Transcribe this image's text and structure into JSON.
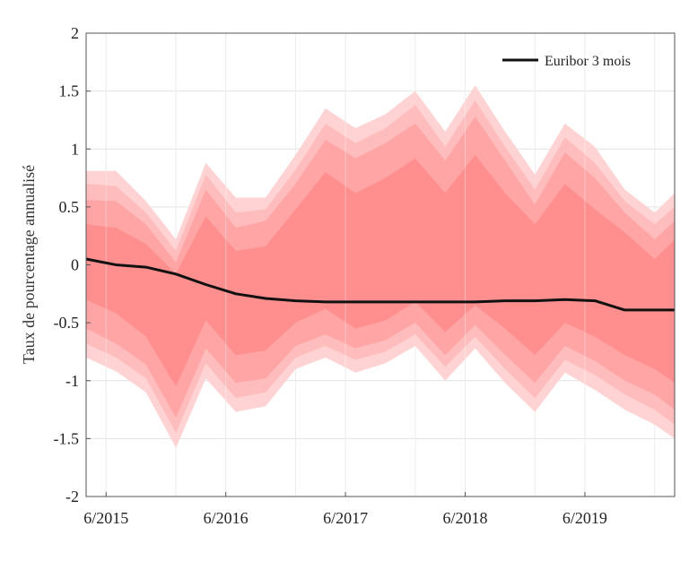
{
  "chart_data": {
    "type": "area",
    "ylabel": "Taux de pourcentage annualisé",
    "xlabel": "",
    "ylim": [
      -2,
      2
    ],
    "yticks": [
      2,
      1.5,
      1,
      0.5,
      0,
      -0.5,
      -1,
      -1.5,
      -2
    ],
    "ytick_labels": [
      "2",
      "1.5",
      "1",
      "0.5",
      "0",
      "-0.5",
      "-1",
      "-1.5",
      "-2"
    ],
    "xlim": [
      "2015-04",
      "2020-03"
    ],
    "xticks": [
      "2015-06",
      "2016-06",
      "2017-06",
      "2018-06",
      "2019-06"
    ],
    "xtick_labels": [
      "6/2015",
      "6/2016",
      "6/2017",
      "6/2018",
      "6/2019"
    ],
    "grid": true,
    "legend": {
      "position": "top-right",
      "entries": [
        "Euribor 3 mois"
      ]
    },
    "x": [
      "2015-04",
      "2015-07",
      "2015-10",
      "2016-01",
      "2016-04",
      "2016-07",
      "2016-10",
      "2017-01",
      "2017-04",
      "2017-07",
      "2017-10",
      "2018-01",
      "2018-04",
      "2018-07",
      "2018-10",
      "2019-01",
      "2019-04",
      "2019-07",
      "2019-10",
      "2020-01",
      "2020-03"
    ],
    "series": [
      {
        "name": "Euribor 3 mois",
        "color": "#111111",
        "values": [
          0.05,
          0.0,
          -0.02,
          -0.08,
          -0.17,
          -0.25,
          -0.29,
          -0.31,
          -0.32,
          -0.32,
          -0.32,
          -0.32,
          -0.32,
          -0.32,
          -0.31,
          -0.31,
          -0.3,
          -0.31,
          -0.39,
          -0.39,
          -0.39
        ]
      }
    ],
    "fan_bands": [
      {
        "color": "#ffd3d3",
        "upper": [
          0.81,
          0.81,
          0.55,
          0.22,
          0.88,
          0.58,
          0.58,
          0.95,
          1.35,
          1.18,
          1.3,
          1.5,
          1.15,
          1.55,
          1.15,
          0.78,
          1.22,
          1.02,
          0.65,
          0.45,
          0.62
        ],
        "lower": [
          -0.8,
          -0.92,
          -1.1,
          -1.58,
          -0.98,
          -1.27,
          -1.22,
          -0.9,
          -0.8,
          -0.93,
          -0.85,
          -0.7,
          -1.0,
          -0.72,
          -1.02,
          -1.27,
          -0.93,
          -1.08,
          -1.25,
          -1.38,
          -1.5
        ]
      },
      {
        "color": "#ffbcbc",
        "upper": [
          0.7,
          0.68,
          0.45,
          0.12,
          0.78,
          0.45,
          0.48,
          0.82,
          1.22,
          1.05,
          1.18,
          1.38,
          1.02,
          1.42,
          1.02,
          0.65,
          1.1,
          0.88,
          0.55,
          0.35,
          0.5
        ],
        "lower": [
          -0.68,
          -0.8,
          -0.98,
          -1.45,
          -0.85,
          -1.15,
          -1.1,
          -0.8,
          -0.7,
          -0.82,
          -0.75,
          -0.6,
          -0.88,
          -0.62,
          -0.9,
          -1.15,
          -0.82,
          -0.95,
          -1.12,
          -1.25,
          -1.38
        ]
      },
      {
        "color": "#ffa5a5",
        "upper": [
          0.56,
          0.55,
          0.35,
          0.02,
          0.65,
          0.32,
          0.38,
          0.7,
          1.08,
          0.92,
          1.05,
          1.22,
          0.9,
          1.28,
          0.9,
          0.52,
          0.97,
          0.75,
          0.45,
          0.22,
          0.38
        ],
        "lower": [
          -0.55,
          -0.68,
          -0.86,
          -1.32,
          -0.72,
          -1.02,
          -0.98,
          -0.7,
          -0.6,
          -0.72,
          -0.65,
          -0.5,
          -0.78,
          -0.52,
          -0.78,
          -1.02,
          -0.7,
          -0.83,
          -1.0,
          -1.12,
          -1.25
        ]
      },
      {
        "color": "#ff8f8f",
        "upper": [
          0.35,
          0.32,
          0.18,
          -0.08,
          0.42,
          0.12,
          0.16,
          0.48,
          0.8,
          0.62,
          0.75,
          0.92,
          0.62,
          0.95,
          0.62,
          0.35,
          0.7,
          0.48,
          0.28,
          0.05,
          0.22
        ],
        "lower": [
          -0.3,
          -0.42,
          -0.62,
          -1.05,
          -0.48,
          -0.78,
          -0.74,
          -0.5,
          -0.38,
          -0.55,
          -0.48,
          -0.32,
          -0.58,
          -0.35,
          -0.55,
          -0.78,
          -0.5,
          -0.62,
          -0.78,
          -0.9,
          -1.02
        ]
      }
    ]
  }
}
